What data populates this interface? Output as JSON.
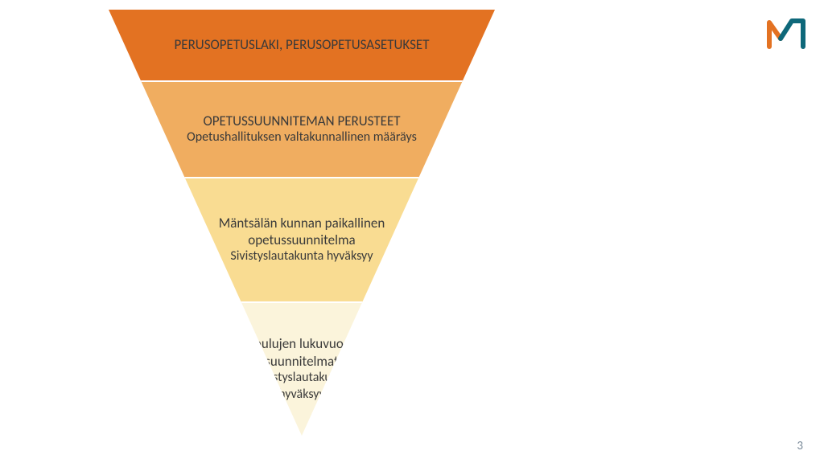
{
  "pyramid": {
    "type": "inverted-triangle",
    "levels": [
      {
        "title": "PERUSOPETUSLAKI, PERUSOPETUSASETUKSET",
        "subtitle": "",
        "bg_color": "#e37222",
        "title_fontsize": 17,
        "title_weight": "400",
        "sub_fontsize": 16
      },
      {
        "title": "OPETUSSUUNNITEMAN PERUSTEET",
        "subtitle": "Opetushallituksen valtakunnallinen määräys",
        "bg_color": "#f0ad60",
        "title_fontsize": 17,
        "title_weight": "400",
        "sub_fontsize": 16
      },
      {
        "title": "Mäntsälän kunnan paikallinen\nopetussuunnitelma",
        "subtitle": "Sivistyslautakunta hyväksyy",
        "bg_color": "#f9dc92",
        "title_fontsize": 17,
        "title_weight": "400",
        "sub_fontsize": 16
      },
      {
        "title": "Koulujen lukuvuosi-\nsuunnitelmat",
        "subtitle": "Sivistyslautakunta\nhyväksyy",
        "bg_color": "#fbf4db",
        "title_fontsize": 17,
        "title_weight": "400",
        "sub_fontsize": 16
      }
    ],
    "text_color": "#3a3a3a",
    "background_color": "#ffffff"
  },
  "logo": {
    "stroke_orange": "#e37222",
    "stroke_teal": "#0e687a",
    "stroke_width": 6
  },
  "page_number": "3"
}
